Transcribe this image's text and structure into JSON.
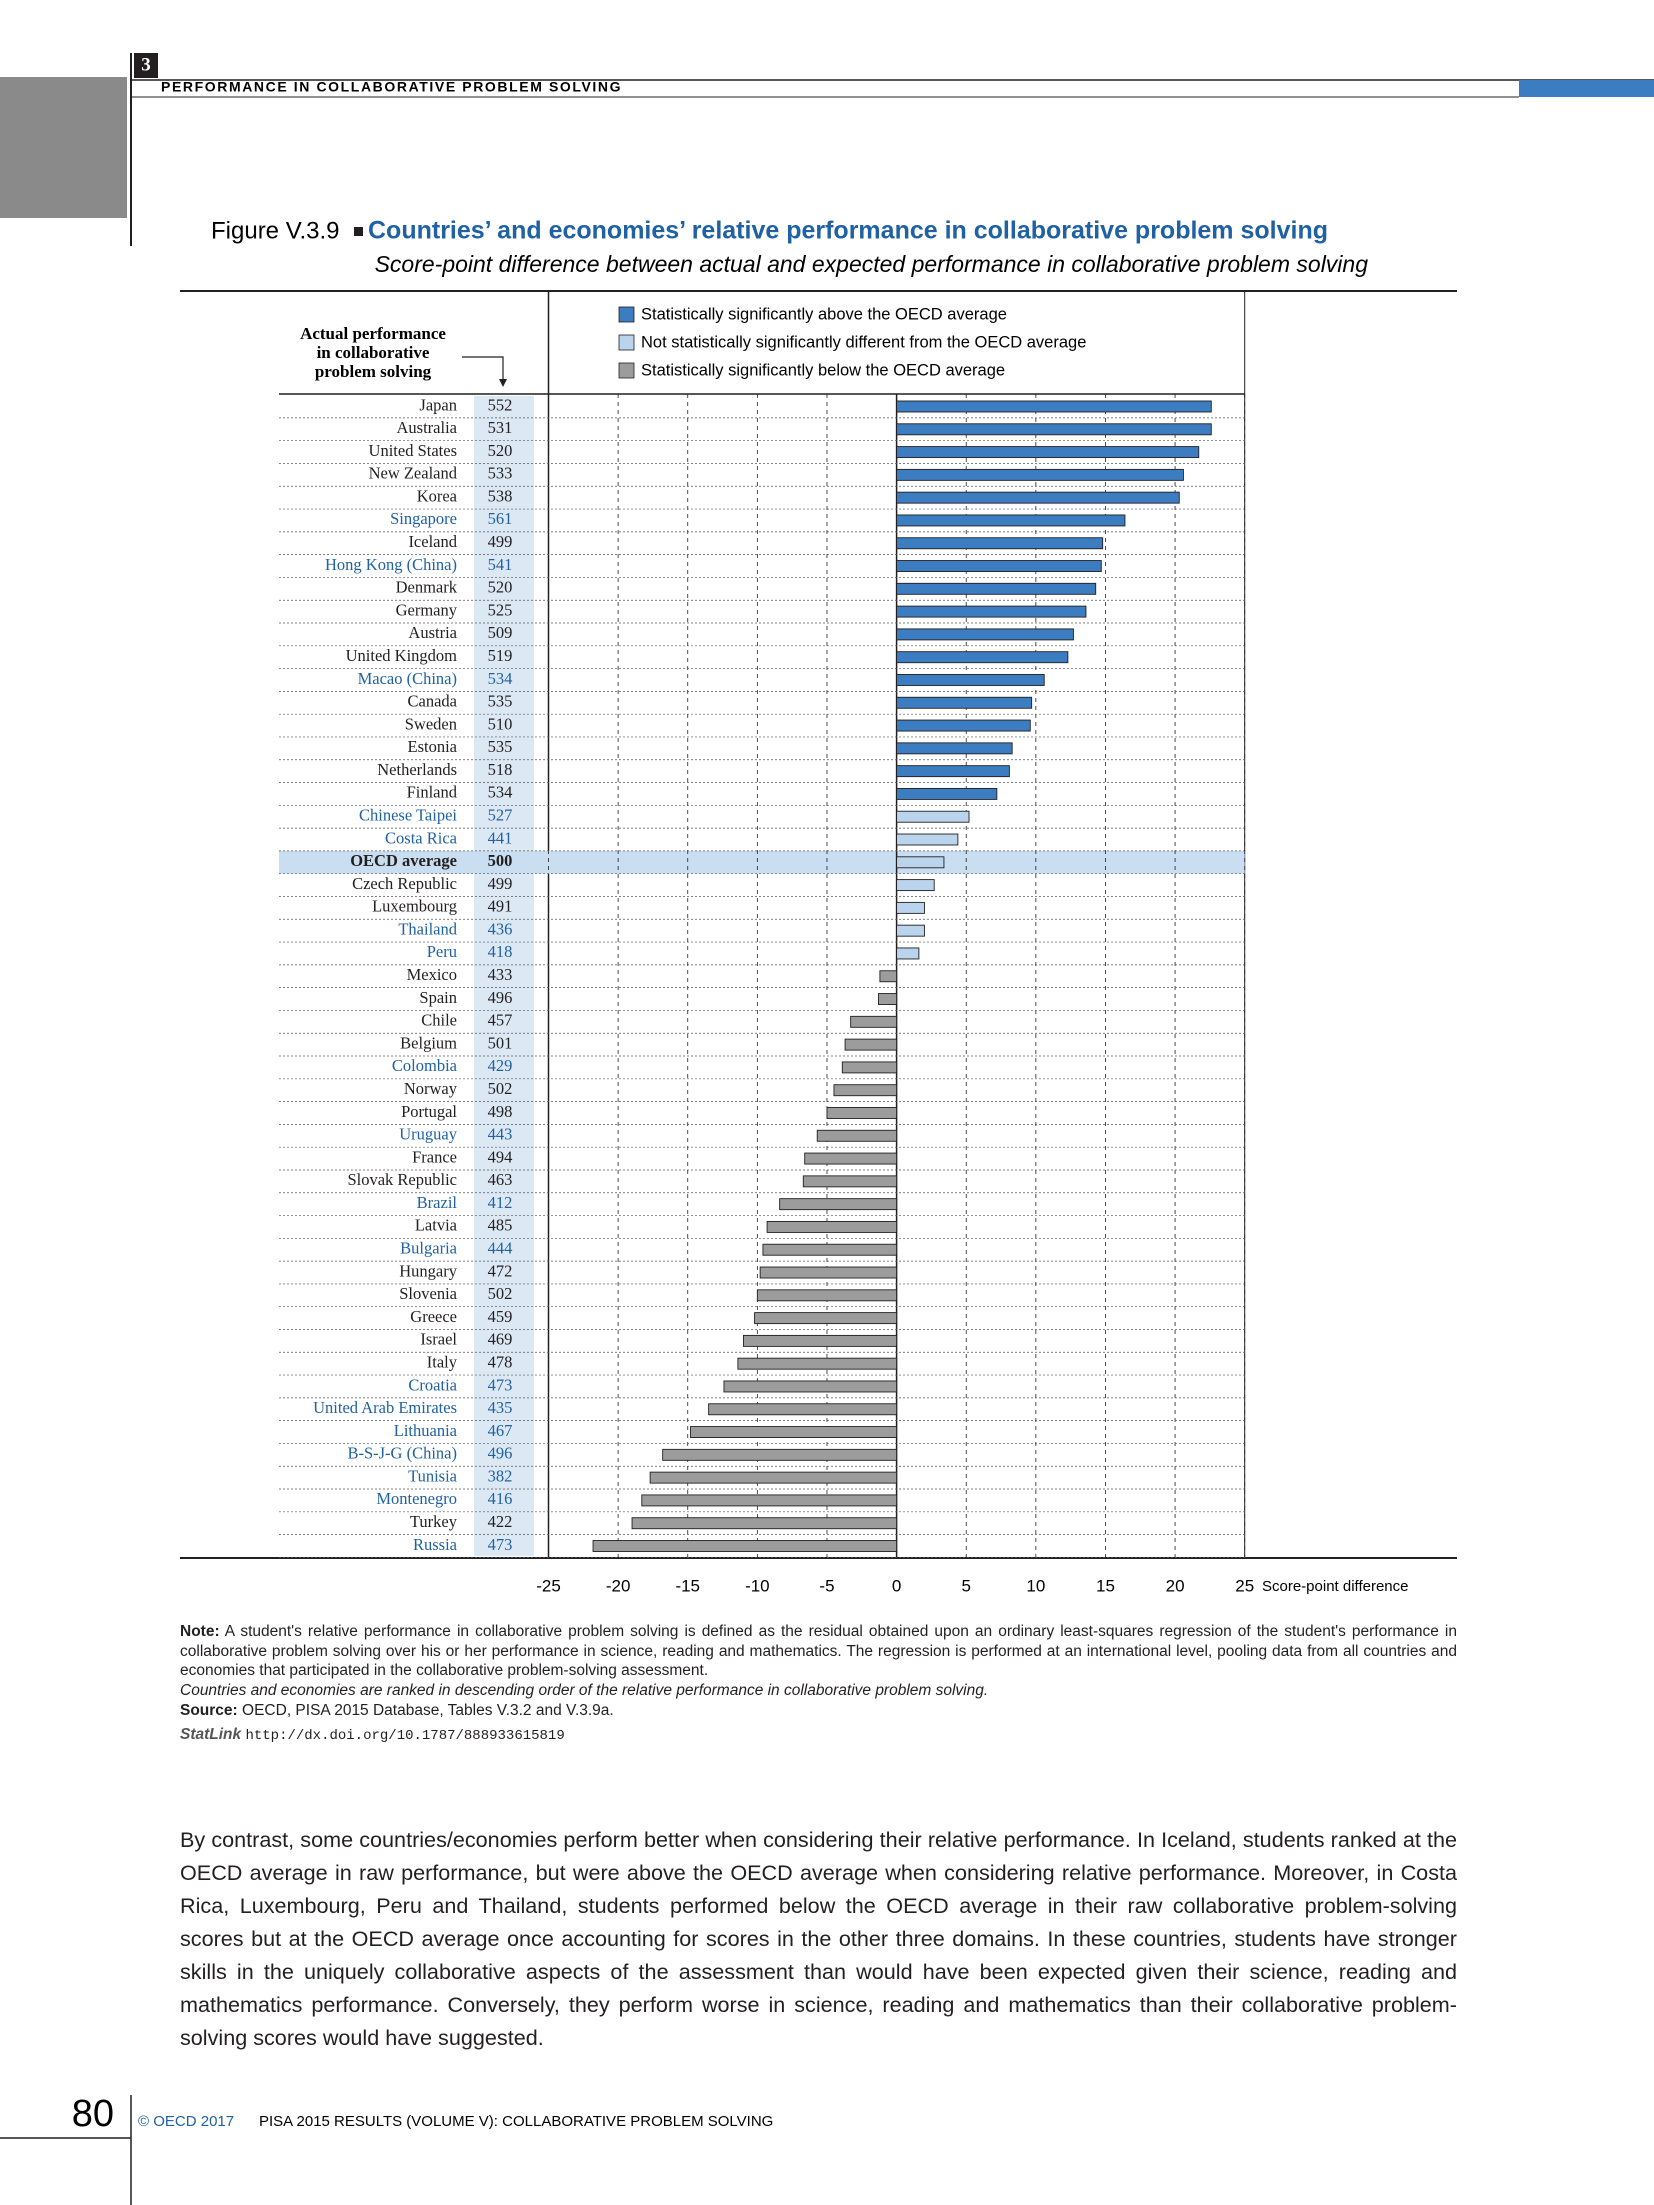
{
  "header": {
    "chapter": "3",
    "running_title": "PERFORMANCE IN COLLABORATIVE PROBLEM SOLVING"
  },
  "chart_data": {
    "type": "bar",
    "figure_label": "Figure V.3.9",
    "title": "Countries’ and economies’ relative performance in collaborative problem solving",
    "subtitle": "Score-point difference between actual and expected performance in collaborative problem solving",
    "column_header": [
      "Actual performance",
      "in collaborative",
      "problem solving"
    ],
    "x_label": "Score-point difference",
    "categories": [
      "Japan",
      "Australia",
      "United States",
      "New Zealand",
      "Korea",
      "Singapore",
      "Iceland",
      "Hong Kong (China)",
      "Denmark",
      "Germany",
      "Austria",
      "United Kingdom",
      "Macao (China)",
      "Canada",
      "Sweden",
      "Estonia",
      "Netherlands",
      "Finland",
      "Chinese Taipei",
      "Costa Rica",
      "OECD average",
      "Czech Republic",
      "Luxembourg",
      "Thailand",
      "Peru",
      "Mexico",
      "Spain",
      "Chile",
      "Belgium",
      "Colombia",
      "Norway",
      "Portugal",
      "Uruguay",
      "France",
      "Slovak Republic",
      "Brazil",
      "Latvia",
      "Bulgaria",
      "Hungary",
      "Slovenia",
      "Greece",
      "Israel",
      "Italy",
      "Croatia",
      "United Arab Emirates",
      "Lithuania",
      "B-S-J-G (China)",
      "Tunisia",
      "Montenegro",
      "Turkey",
      "Russia"
    ],
    "actual": [
      552,
      531,
      520,
      533,
      538,
      561,
      499,
      541,
      520,
      525,
      509,
      519,
      534,
      535,
      510,
      535,
      518,
      534,
      527,
      441,
      500,
      499,
      491,
      436,
      418,
      433,
      496,
      457,
      501,
      429,
      502,
      498,
      443,
      494,
      463,
      412,
      485,
      444,
      472,
      502,
      459,
      469,
      478,
      473,
      435,
      467,
      496,
      382,
      416,
      422,
      473
    ],
    "values": [
      22.6,
      22.6,
      21.7,
      20.6,
      20.3,
      16.4,
      14.8,
      14.7,
      14.3,
      13.6,
      12.7,
      12.3,
      10.6,
      9.7,
      9.6,
      8.3,
      8.1,
      7.2,
      5.2,
      4.4,
      3.4,
      2.7,
      2.0,
      2.0,
      1.6,
      -1.2,
      -1.3,
      -3.3,
      -3.7,
      -3.9,
      -4.5,
      -5.0,
      -5.7,
      -6.6,
      -6.7,
      -8.4,
      -9.3,
      -9.6,
      -9.8,
      -10.0,
      -10.2,
      -11.0,
      -11.4,
      -12.4,
      -13.5,
      -14.8,
      -16.8,
      -17.7,
      -18.3,
      -19.0,
      -21.8
    ],
    "status": [
      0,
      0,
      0,
      0,
      0,
      0,
      0,
      0,
      0,
      0,
      0,
      0,
      0,
      0,
      0,
      0,
      0,
      0,
      1,
      1,
      1,
      1,
      1,
      1,
      1,
      2,
      2,
      2,
      2,
      2,
      2,
      2,
      2,
      2,
      2,
      2,
      2,
      2,
      2,
      2,
      2,
      2,
      2,
      2,
      2,
      2,
      2,
      2,
      2,
      2,
      2
    ],
    "partner": [
      false,
      false,
      false,
      false,
      false,
      true,
      false,
      true,
      false,
      false,
      false,
      false,
      true,
      false,
      false,
      false,
      false,
      false,
      true,
      true,
      false,
      false,
      false,
      true,
      true,
      false,
      false,
      false,
      false,
      true,
      false,
      false,
      true,
      false,
      false,
      true,
      false,
      true,
      false,
      false,
      false,
      false,
      false,
      true,
      true,
      true,
      true,
      true,
      true,
      false,
      true
    ],
    "legend": [
      {
        "name": "Statistically significantly above the OECD average",
        "color": "#3b7dc0"
      },
      {
        "name": "Not statistically significantly different from the OECD average",
        "color": "#b9d4ec"
      },
      {
        "name": "Statistically significantly below the OECD average",
        "color": "#9c9c9c"
      }
    ],
    "partner_color": "#1f61a3",
    "highlight": 20,
    "highlight_color": "#c9def1",
    "xlim": [
      -25,
      25
    ],
    "xticks": [
      -25,
      -20,
      -15,
      -10,
      -5,
      0,
      5,
      10,
      15,
      20,
      25
    ],
    "grid": true
  },
  "notes": {
    "note_label": "Note:",
    "note": "A student's relative performance in collaborative problem solving is defined as the residual obtained upon an ordinary least-squares regression of the student's performance in collaborative problem solving over his or her performance in science, reading and mathematics. The regression is performed at an international level, pooling data from all countries and economies that participated in the collaborative problem-solving assessment.",
    "ranking": "Countries and economies are ranked in descending order of the relative performance in collaborative problem solving.",
    "source_label": "Source:",
    "source": "OECD, PISA 2015 Database, Tables V.3.2 and V.3.9a.",
    "statlink_label": "StatLink",
    "statlink": "http://dx.doi.org/10.1787/888933615819"
  },
  "body": "By contrast, some countries/economies perform better when considering their relative performance. In Iceland, students ranked at the OECD average in raw performance, but were above the OECD average when considering relative performance. Moreover, in Costa Rica, Luxembourg, Peru and Thailand, students performed below the OECD average in their raw collaborative problem-solving scores but at the OECD average once accounting for scores in the other three domains. In these countries, students have stronger skills in the uniquely collaborative aspects of the assessment than would have been expected given their science, reading and mathematics performance. Conversely, they perform worse in science, reading and mathematics than their collaborative problem-solving scores would have suggested.",
  "footer": {
    "page": "80",
    "copyright": "© OECD 2017",
    "book": "PISA 2015 RESULTS (VOLUME V): COLLABORATIVE PROBLEM SOLVING"
  }
}
